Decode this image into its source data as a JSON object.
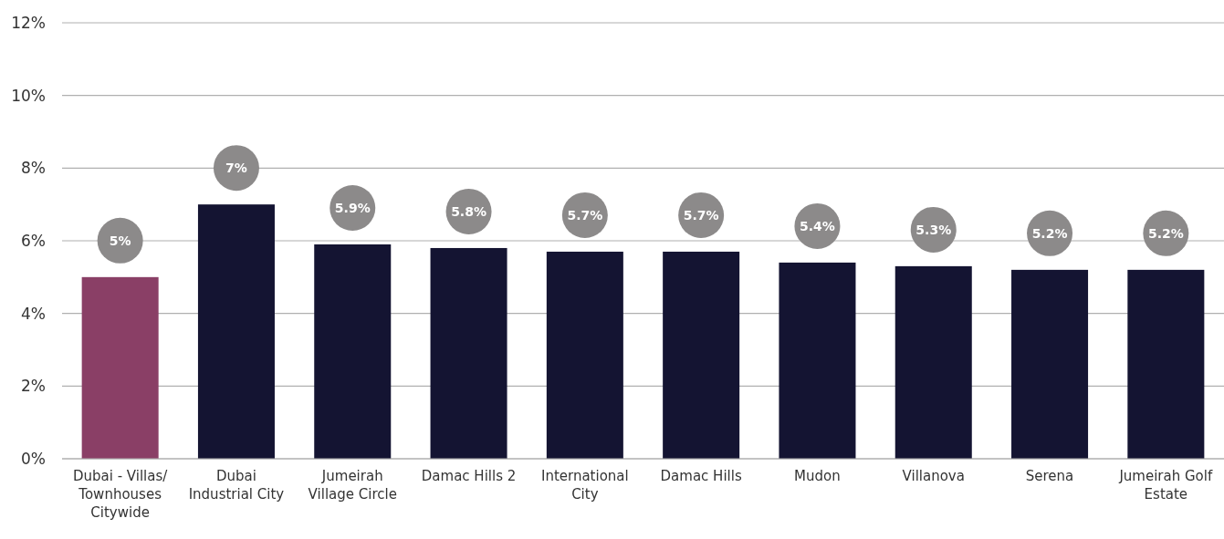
{
  "chart_data": {
    "type": "bar",
    "categories": [
      "Dubai - Villas/ Townhouses Citywide",
      "Dubai Industrial City",
      "Jumeirah Village Circle",
      "Damac Hills 2",
      "International City",
      "Damac Hills",
      "Mudon",
      "Villanova",
      "Serena",
      "Jumeirah Golf Estate"
    ],
    "values": [
      5,
      7,
      5.9,
      5.8,
      5.7,
      5.7,
      5.4,
      5.3,
      5.2,
      5.2
    ],
    "value_labels": [
      "5%",
      "7%",
      "5.9%",
      "5.8%",
      "5.7%",
      "5.7%",
      "5.4%",
      "5.3%",
      "5.2%",
      "5.2%"
    ],
    "colors": [
      "#8a3f66",
      "#141432",
      "#141432",
      "#141432",
      "#141432",
      "#141432",
      "#141432",
      "#141432",
      "#141432",
      "#141432"
    ],
    "ylim": [
      0,
      12
    ],
    "yticks": [
      {
        "value": 0,
        "label": "0%"
      },
      {
        "value": 2,
        "label": "2%"
      },
      {
        "value": 4,
        "label": "4%"
      },
      {
        "value": 6,
        "label": "6%"
      },
      {
        "value": 8,
        "label": "8%"
      },
      {
        "value": 10,
        "label": "10%"
      },
      {
        "value": 12,
        "label": "12%"
      }
    ],
    "grid": "y"
  }
}
